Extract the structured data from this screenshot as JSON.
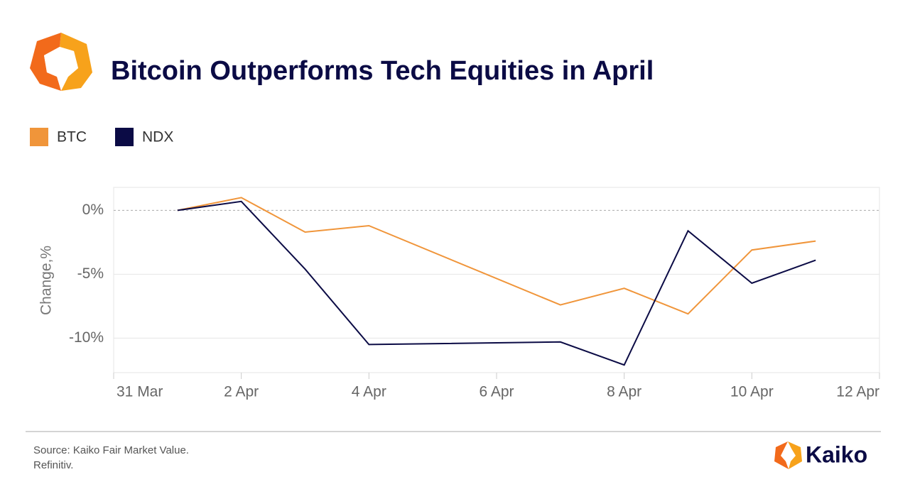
{
  "chart_data": {
    "type": "line",
    "title": "Bitcoin Outperforms Tech Equities in April",
    "y_label": "Change,%",
    "x": [
      1,
      2,
      3,
      4,
      7,
      8,
      9,
      10,
      11
    ],
    "series": [
      {
        "name": "BTC",
        "color": "#f0953a",
        "values": [
          0,
          1.0,
          -1.7,
          -1.2,
          -7.4,
          -6.1,
          -8.1,
          -3.1,
          -2.4
        ]
      },
      {
        "name": "NDX",
        "color": "#0b0b45",
        "values": [
          0,
          0.7,
          -4.6,
          -10.5,
          -10.3,
          -12.1,
          -1.6,
          -5.7,
          -3.9
        ]
      }
    ],
    "xlim": [
      0,
      12
    ],
    "xticks": [
      {
        "value": 0,
        "label": "31 Mar"
      },
      {
        "value": 2,
        "label": "2 Apr"
      },
      {
        "value": 4,
        "label": "4 Apr"
      },
      {
        "value": 6,
        "label": "6 Apr"
      },
      {
        "value": 8,
        "label": "8 Apr"
      },
      {
        "value": 10,
        "label": "10 Apr"
      },
      {
        "value": 12,
        "label": "12 Apr"
      }
    ],
    "ylim": [
      -12.7,
      1.8
    ],
    "yticks": [
      {
        "value": -10,
        "label": "-10%"
      },
      {
        "value": -5,
        "label": "-5%"
      },
      {
        "value": 0,
        "label": "0%"
      }
    ],
    "grid": true,
    "legend": "top-left",
    "source": "Source: Kaiko Fair Market Value.",
    "source2": "Refinitiv.",
    "brand": "Kaiko"
  }
}
